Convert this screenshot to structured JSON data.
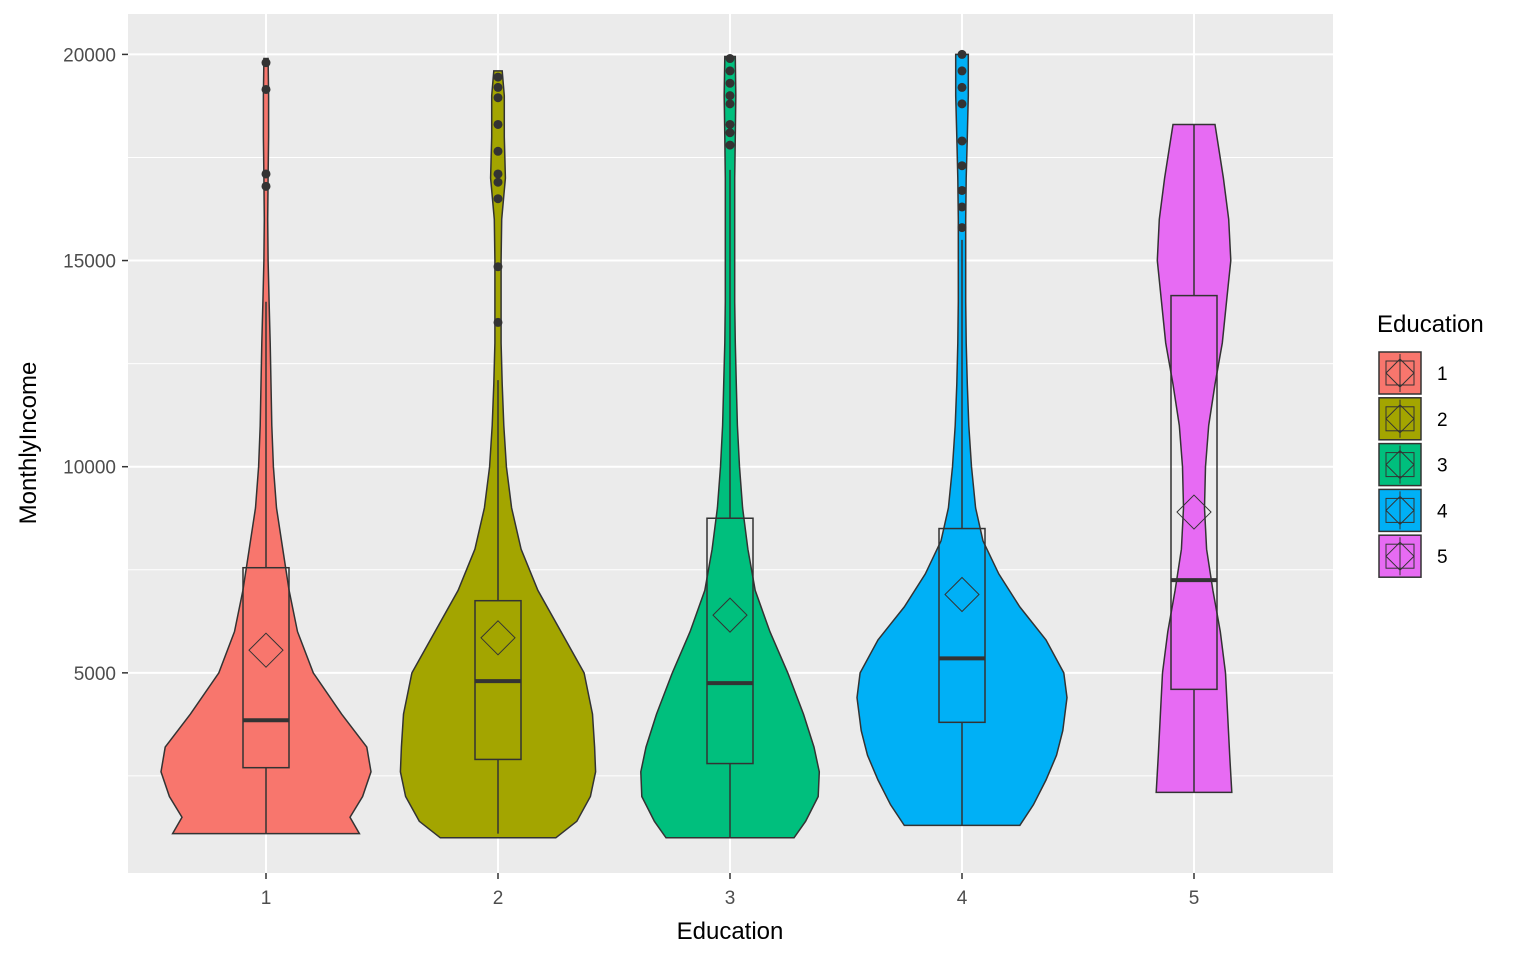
{
  "chart_data": {
    "type": "violin",
    "xlabel": "Education",
    "ylabel": "MonthlyIncome",
    "ylim": [
      0,
      20000
    ],
    "yticks": [
      5000,
      10000,
      15000,
      20000
    ],
    "ytick_labels": [
      "5000",
      "10000",
      "15000",
      "20000"
    ],
    "categories": [
      "1",
      "2",
      "3",
      "4",
      "5"
    ],
    "grid": true,
    "legend": {
      "title": "Education",
      "position": "right",
      "entries": [
        "1",
        "2",
        "3",
        "4",
        "5"
      ]
    },
    "series": [
      {
        "name": "1",
        "color": "#F8766D",
        "violin": {
          "min": 1100,
          "max": 19900,
          "density": [
            [
              1100,
              0.89
            ],
            [
              1500,
              0.8
            ],
            [
              2000,
              0.92
            ],
            [
              2600,
              1.0
            ],
            [
              3200,
              0.96
            ],
            [
              4000,
              0.72
            ],
            [
              5000,
              0.45
            ],
            [
              6000,
              0.3
            ],
            [
              7000,
              0.22
            ],
            [
              8000,
              0.16
            ],
            [
              9000,
              0.1
            ],
            [
              10000,
              0.07
            ],
            [
              11000,
              0.055
            ],
            [
              12000,
              0.048
            ],
            [
              13000,
              0.04
            ],
            [
              14000,
              0.03
            ],
            [
              15000,
              0.02
            ],
            [
              16000,
              0.016
            ],
            [
              17000,
              0.02
            ],
            [
              18000,
              0.025
            ],
            [
              19000,
              0.025
            ],
            [
              19900,
              0.02
            ]
          ]
        },
        "box": {
          "q1": 2700,
          "median": 3850,
          "q3": 7550,
          "whisker_low": 1100,
          "whisker_high": 14000
        },
        "mean": 5550,
        "outliers": [
          16800,
          17100,
          19150,
          19800
        ]
      },
      {
        "name": "2",
        "color": "#A3A500",
        "violin": {
          "min": 1000,
          "max": 19600,
          "density": [
            [
              1000,
              0.55
            ],
            [
              1400,
              0.75
            ],
            [
              2000,
              0.88
            ],
            [
              2600,
              0.93
            ],
            [
              3200,
              0.92
            ],
            [
              4000,
              0.9
            ],
            [
              5000,
              0.82
            ],
            [
              6000,
              0.6
            ],
            [
              7000,
              0.38
            ],
            [
              8000,
              0.22
            ],
            [
              9000,
              0.13
            ],
            [
              10000,
              0.08
            ],
            [
              11000,
              0.055
            ],
            [
              12000,
              0.04
            ],
            [
              13000,
              0.03
            ],
            [
              14000,
              0.03
            ],
            [
              15000,
              0.03
            ],
            [
              16000,
              0.035
            ],
            [
              17000,
              0.07
            ],
            [
              18000,
              0.06
            ],
            [
              19000,
              0.06
            ],
            [
              19600,
              0.04
            ]
          ]
        },
        "box": {
          "q1": 2900,
          "median": 4800,
          "q3": 6750,
          "whisker_low": 1100,
          "whisker_high": 12100
        },
        "mean": 5850,
        "outliers": [
          13500,
          14850,
          16500,
          16900,
          17100,
          17650,
          18300,
          18950,
          19200,
          19450
        ]
      },
      {
        "name": "3",
        "color": "#00BF7D",
        "violin": {
          "min": 1000,
          "max": 19950,
          "density": [
            [
              1000,
              0.61
            ],
            [
              1400,
              0.72
            ],
            [
              2000,
              0.84
            ],
            [
              2600,
              0.85
            ],
            [
              3200,
              0.8
            ],
            [
              4000,
              0.7
            ],
            [
              5000,
              0.55
            ],
            [
              6000,
              0.38
            ],
            [
              7000,
              0.24
            ],
            [
              8000,
              0.17
            ],
            [
              9000,
              0.12
            ],
            [
              10000,
              0.09
            ],
            [
              11000,
              0.07
            ],
            [
              12000,
              0.06
            ],
            [
              13000,
              0.05
            ],
            [
              14000,
              0.045
            ],
            [
              15000,
              0.045
            ],
            [
              16000,
              0.045
            ],
            [
              17000,
              0.045
            ],
            [
              18000,
              0.05
            ],
            [
              19000,
              0.055
            ],
            [
              19950,
              0.05
            ]
          ]
        },
        "box": {
          "q1": 2800,
          "median": 4750,
          "q3": 8750,
          "whisker_low": 1000,
          "whisker_high": 17200
        },
        "mean": 6400,
        "outliers": [
          17800,
          18100,
          18300,
          18800,
          19000,
          19300,
          19600,
          19900
        ]
      },
      {
        "name": "4",
        "color": "#00B0F6",
        "violin": {
          "min": 1300,
          "max": 20000,
          "density": [
            [
              1300,
              0.55
            ],
            [
              1800,
              0.68
            ],
            [
              2400,
              0.8
            ],
            [
              3000,
              0.9
            ],
            [
              3600,
              0.96
            ],
            [
              4400,
              1.0
            ],
            [
              5000,
              0.97
            ],
            [
              5800,
              0.8
            ],
            [
              6600,
              0.55
            ],
            [
              7400,
              0.35
            ],
            [
              8200,
              0.2
            ],
            [
              9000,
              0.13
            ],
            [
              10000,
              0.09
            ],
            [
              11000,
              0.065
            ],
            [
              12000,
              0.05
            ],
            [
              13000,
              0.04
            ],
            [
              14000,
              0.035
            ],
            [
              15000,
              0.035
            ],
            [
              16000,
              0.035
            ],
            [
              17000,
              0.04
            ],
            [
              18000,
              0.05
            ],
            [
              19000,
              0.06
            ],
            [
              20000,
              0.06
            ]
          ]
        },
        "box": {
          "q1": 3800,
          "median": 5350,
          "q3": 8500,
          "whisker_low": 1300,
          "whisker_high": 15500
        },
        "mean": 6900,
        "outliers": [
          15800,
          16300,
          16700,
          17300,
          17900,
          18800,
          19200,
          19600,
          20000
        ]
      },
      {
        "name": "5",
        "color": "#E76BF3",
        "violin": {
          "min": 2100,
          "max": 18300,
          "density": [
            [
              2100,
              0.36
            ],
            [
              3000,
              0.34
            ],
            [
              4000,
              0.32
            ],
            [
              5000,
              0.3
            ],
            [
              6000,
              0.25
            ],
            [
              7000,
              0.18
            ],
            [
              8000,
              0.12
            ],
            [
              9000,
              0.1
            ],
            [
              10000,
              0.11
            ],
            [
              11000,
              0.14
            ],
            [
              12000,
              0.2
            ],
            [
              13000,
              0.27
            ],
            [
              14000,
              0.31
            ],
            [
              15000,
              0.35
            ],
            [
              16000,
              0.33
            ],
            [
              17000,
              0.28
            ],
            [
              18300,
              0.2
            ]
          ]
        },
        "box": {
          "q1": 4600,
          "median": 7250,
          "q3": 14150,
          "whisker_low": 2100,
          "whisker_high": 18300
        },
        "mean": 8900,
        "outliers": []
      }
    ]
  }
}
